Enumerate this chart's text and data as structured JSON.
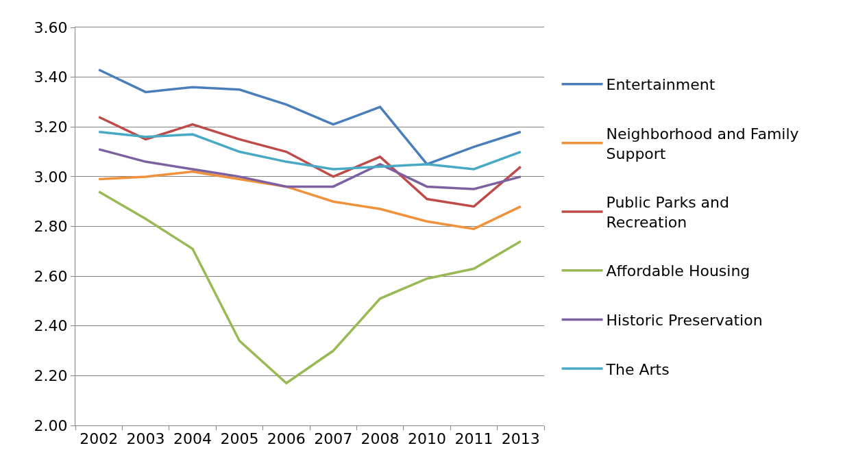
{
  "chart_data": {
    "type": "line",
    "categories": [
      "2002",
      "2003",
      "2004",
      "2005",
      "2006",
      "2007",
      "2008",
      "2010",
      "2011",
      "2013"
    ],
    "series": [
      {
        "name": "Entertainment",
        "color": "#4a7ebb",
        "values": [
          3.43,
          3.34,
          3.36,
          3.35,
          3.29,
          3.21,
          3.28,
          3.05,
          3.12,
          3.18
        ]
      },
      {
        "name": "Neighborhood and Family Support",
        "color": "#f0913c",
        "values": [
          2.99,
          3.0,
          3.02,
          2.99,
          2.96,
          2.9,
          2.87,
          2.82,
          2.79,
          2.88
        ]
      },
      {
        "name": "Public Parks and Recreation",
        "color": "#be4b48",
        "values": [
          3.24,
          3.15,
          3.21,
          3.15,
          3.1,
          3.0,
          3.08,
          2.91,
          2.88,
          3.04
        ]
      },
      {
        "name": "Affordable Housing",
        "color": "#98b954",
        "values": [
          2.94,
          2.83,
          2.71,
          2.34,
          2.17,
          2.3,
          2.51,
          2.59,
          2.63,
          2.74
        ]
      },
      {
        "name": "Historic Preservation",
        "color": "#7d60a0",
        "values": [
          3.11,
          3.06,
          3.03,
          3.0,
          2.96,
          2.96,
          3.05,
          2.96,
          2.95,
          3.0
        ]
      },
      {
        "name": "The Arts",
        "color": "#46aac5",
        "values": [
          3.18,
          3.16,
          3.17,
          3.1,
          3.06,
          3.03,
          3.04,
          3.05,
          3.03,
          3.1
        ]
      }
    ],
    "ylim": [
      2.0,
      3.6
    ],
    "yticks": [
      {
        "value": 2.0,
        "label": "2.00"
      },
      {
        "value": 2.2,
        "label": "2.20"
      },
      {
        "value": 2.4,
        "label": "2.40"
      },
      {
        "value": 2.6,
        "label": "2.60"
      },
      {
        "value": 2.8,
        "label": "2.80"
      },
      {
        "value": 3.0,
        "label": "3.00"
      },
      {
        "value": 3.2,
        "label": "3.20"
      },
      {
        "value": 3.4,
        "label": "3.40"
      },
      {
        "value": 3.6,
        "label": "3.60"
      }
    ],
    "grid": "y",
    "legend": "right",
    "marker": "none",
    "line_style": "solid"
  }
}
